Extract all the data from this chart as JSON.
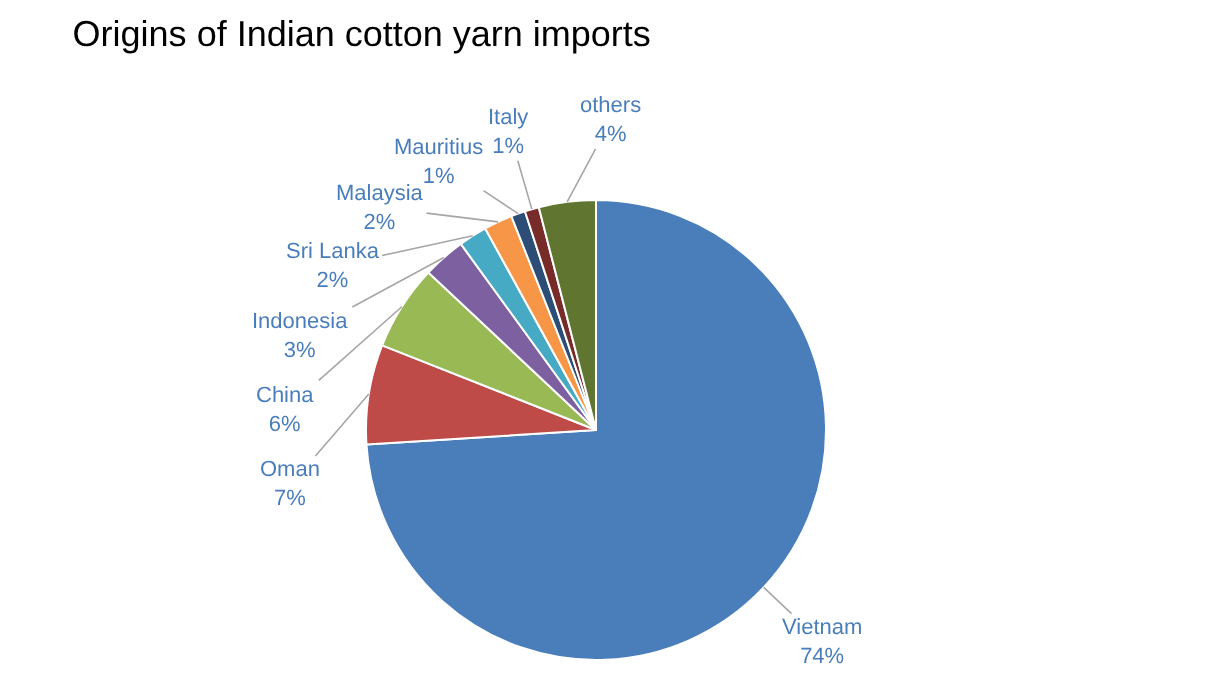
{
  "chart_data": {
    "type": "pie",
    "title": "Origins of Indian cotton yarn imports",
    "categories": [
      "Vietnam",
      "Oman",
      "China",
      "Indonesia",
      "Sri Lanka",
      "Malaysia",
      "Mauritius",
      "Italy",
      "others"
    ],
    "values": [
      74,
      7,
      6,
      3,
      2,
      2,
      1,
      1,
      4
    ],
    "value_labels": [
      "74%",
      "7%",
      "6%",
      "3%",
      "2%",
      "2%",
      "1%",
      "1%",
      "4%"
    ],
    "colors": [
      "#4a7ebb",
      "#be4b48",
      "#98b954",
      "#7d60a0",
      "#46aac5",
      "#f79646",
      "#2c4d75",
      "#772c2a",
      "#5f7530"
    ],
    "legend": false
  }
}
